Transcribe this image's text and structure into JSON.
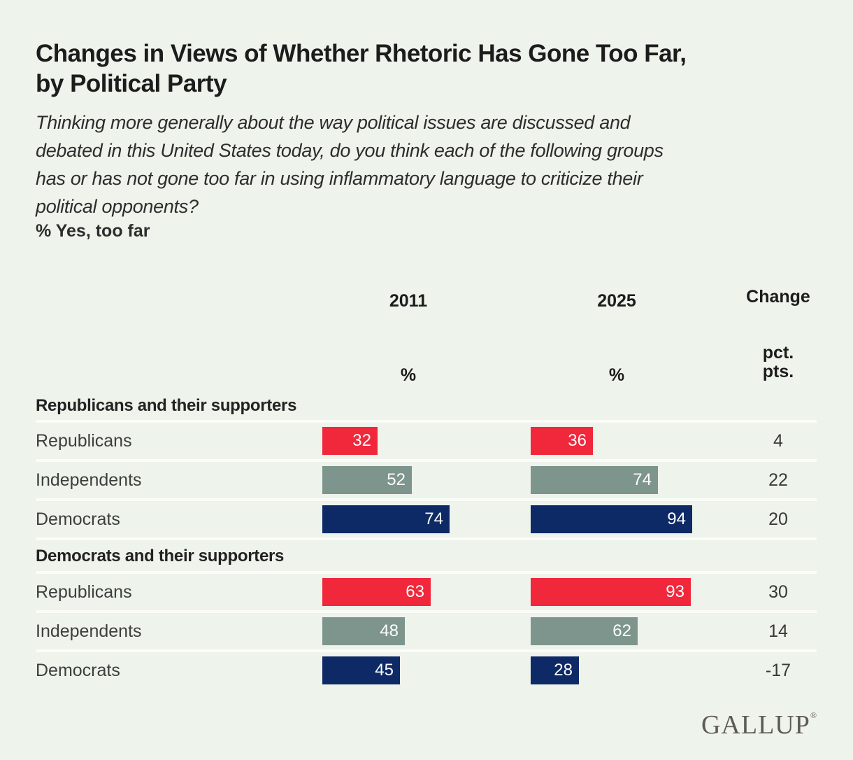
{
  "header": {
    "title": "Changes in Views of Whether Rhetoric Has Gone Too Far,\nby Political Party",
    "subtitle": "Thinking more generally about the way political issues are discussed and\ndebated in this United States today, do you think each of the following groups\nhas or has not gone too far in using inflammatory language to criticize their\npolitical opponents?",
    "measure_label": "% Yes, too far"
  },
  "columns": {
    "year1": "2011",
    "year2": "2025",
    "unit1": "%",
    "unit2": "%",
    "change_label": "Change",
    "change_unit": "pct.\npts."
  },
  "footer": {
    "brand": "GALLUP",
    "registered_mark": "®"
  },
  "colors": {
    "background": "#eef3ec",
    "divider": "#fbfcf8",
    "republicans": "#f1273c",
    "independents": "#7d958d",
    "democrats": "#0d2a66",
    "bar_value_text": "#fdfdfd",
    "brand_text": "#5d5a54"
  },
  "chart_data": {
    "type": "bar",
    "title": "Changes in Views of Whether Rhetoric Has Gone Too Far, by Political Party",
    "measure": "% Yes, too far",
    "columns": [
      "2011",
      "2025",
      "Change"
    ],
    "units": [
      "%",
      "%",
      "pct. pts."
    ],
    "x_max": 100,
    "legend_position": "none",
    "sections": [
      {
        "label": "Republicans and their supporters",
        "rows": [
          {
            "label": "Republicans",
            "color_key": "republicans",
            "values": {
              "2011": 32,
              "2025": 36,
              "change": 4
            }
          },
          {
            "label": "Independents",
            "color_key": "independents",
            "values": {
              "2011": 52,
              "2025": 74,
              "change": 22
            }
          },
          {
            "label": "Democrats",
            "color_key": "democrats",
            "values": {
              "2011": 74,
              "2025": 94,
              "change": 20
            }
          }
        ]
      },
      {
        "label": "Democrats and their supporters",
        "rows": [
          {
            "label": "Republicans",
            "color_key": "republicans",
            "values": {
              "2011": 63,
              "2025": 93,
              "change": 30
            }
          },
          {
            "label": "Independents",
            "color_key": "independents",
            "values": {
              "2011": 48,
              "2025": 62,
              "change": 14
            }
          },
          {
            "label": "Democrats",
            "color_key": "democrats",
            "values": {
              "2011": 45,
              "2025": 28,
              "change": -17
            }
          }
        ]
      }
    ]
  }
}
